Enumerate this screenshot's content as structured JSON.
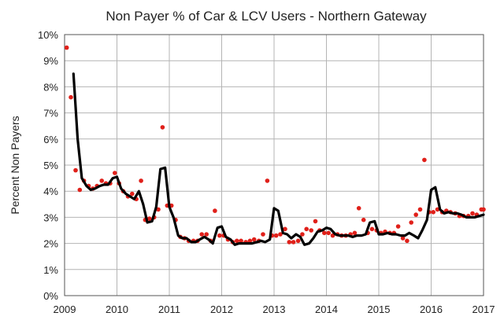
{
  "chart_data": {
    "type": "line",
    "title": "Non Payer % of Car & LCV Users - Northern Gateway",
    "ylabel": "Percent Non Payers",
    "xlabel": "",
    "xlim": [
      2009,
      2017
    ],
    "ylim": [
      0,
      10
    ],
    "grid": true,
    "colors": {
      "line": "#000000",
      "points": "#e0201a",
      "plot_border": "#555555",
      "grid": "#b4b4b4"
    },
    "x_tick_labels": [
      "2009",
      "2010",
      "2011",
      "2012",
      "2013",
      "2014",
      "2015",
      "2016",
      "2017"
    ],
    "y_tick_labels": [
      "0%",
      "1%",
      "2%",
      "3%",
      "4%",
      "5%",
      "6%",
      "7%",
      "8%",
      "9%",
      "10%"
    ],
    "series": [
      {
        "type": "line",
        "x": [
          2009.17,
          2009.25,
          2009.33,
          2009.42,
          2009.5,
          2009.58,
          2009.67,
          2009.75,
          2009.83,
          2009.92,
          2010.0,
          2010.08,
          2010.17,
          2010.25,
          2010.33,
          2010.42,
          2010.5,
          2010.58,
          2010.67,
          2010.75,
          2010.83,
          2010.92,
          2011.0,
          2011.08,
          2011.17,
          2011.25,
          2011.33,
          2011.42,
          2011.5,
          2011.58,
          2011.67,
          2011.75,
          2011.83,
          2011.92,
          2012.0,
          2012.08,
          2012.17,
          2012.25,
          2012.33,
          2012.42,
          2012.5,
          2012.58,
          2012.67,
          2012.75,
          2012.83,
          2012.92,
          2013.0,
          2013.08,
          2013.17,
          2013.25,
          2013.33,
          2013.42,
          2013.5,
          2013.58,
          2013.67,
          2013.75,
          2013.83,
          2013.92,
          2014.0,
          2014.08,
          2014.17,
          2014.25,
          2014.33,
          2014.42,
          2014.5,
          2014.58,
          2014.67,
          2014.75,
          2014.83,
          2014.92,
          2015.0,
          2015.08,
          2015.17,
          2015.25,
          2015.33,
          2015.42,
          2015.5,
          2015.58,
          2015.67,
          2015.75,
          2015.83,
          2015.92,
          2016.0,
          2016.08,
          2016.17,
          2016.25,
          2016.33,
          2016.42,
          2016.5,
          2016.58,
          2016.67,
          2016.75,
          2016.83,
          2016.92,
          2017.0
        ],
        "y": [
          8.5,
          6.0,
          4.5,
          4.2,
          4.05,
          4.1,
          4.2,
          4.25,
          4.25,
          4.5,
          4.55,
          4.1,
          3.9,
          3.8,
          3.7,
          4.0,
          3.5,
          2.8,
          2.85,
          3.4,
          4.85,
          4.9,
          3.4,
          3.0,
          2.3,
          2.2,
          2.2,
          2.05,
          2.05,
          2.15,
          2.25,
          2.15,
          2.0,
          2.6,
          2.65,
          2.25,
          2.15,
          1.95,
          2.0,
          2.0,
          2.0,
          2.0,
          2.05,
          2.1,
          2.05,
          2.15,
          3.35,
          3.25,
          2.4,
          2.35,
          2.2,
          2.35,
          2.25,
          1.95,
          2.0,
          2.2,
          2.45,
          2.5,
          2.6,
          2.55,
          2.35,
          2.3,
          2.3,
          2.3,
          2.25,
          2.3,
          2.3,
          2.35,
          2.8,
          2.85,
          2.35,
          2.35,
          2.4,
          2.35,
          2.35,
          2.3,
          2.3,
          2.4,
          2.3,
          2.2,
          2.5,
          2.9,
          4.05,
          4.15,
          3.3,
          3.15,
          3.2,
          3.15,
          3.15,
          3.1,
          3.0,
          3.0,
          3.0,
          3.05,
          3.1
        ]
      },
      {
        "type": "scatter",
        "x": [
          2009.04,
          2009.12,
          2009.21,
          2009.29,
          2009.37,
          2009.46,
          2009.54,
          2009.62,
          2009.71,
          2009.79,
          2009.87,
          2009.96,
          2010.04,
          2010.12,
          2010.21,
          2010.29,
          2010.37,
          2010.46,
          2010.54,
          2010.62,
          2010.71,
          2010.79,
          2010.87,
          2010.96,
          2011.04,
          2011.12,
          2011.21,
          2011.29,
          2011.37,
          2011.46,
          2011.54,
          2011.62,
          2011.71,
          2011.79,
          2011.87,
          2011.96,
          2012.04,
          2012.12,
          2012.21,
          2012.29,
          2012.37,
          2012.46,
          2012.54,
          2012.62,
          2012.71,
          2012.79,
          2012.87,
          2012.96,
          2013.04,
          2013.12,
          2013.21,
          2013.29,
          2013.37,
          2013.46,
          2013.54,
          2013.62,
          2013.71,
          2013.79,
          2013.87,
          2013.96,
          2014.04,
          2014.12,
          2014.21,
          2014.29,
          2014.37,
          2014.46,
          2014.54,
          2014.62,
          2014.71,
          2014.79,
          2014.87,
          2014.96,
          2015.04,
          2015.12,
          2015.21,
          2015.29,
          2015.37,
          2015.46,
          2015.54,
          2015.62,
          2015.71,
          2015.79,
          2015.87,
          2015.96,
          2016.04,
          2016.12,
          2016.21,
          2016.29,
          2016.37,
          2016.46,
          2016.54,
          2016.62,
          2016.71,
          2016.79,
          2016.87,
          2016.96,
          2017.0
        ],
        "y": [
          9.5,
          7.6,
          4.8,
          4.05,
          4.4,
          4.2,
          4.1,
          4.2,
          4.4,
          4.3,
          4.3,
          4.7,
          4.3,
          4.0,
          3.8,
          3.9,
          3.7,
          4.4,
          2.9,
          2.95,
          3.0,
          3.3,
          6.45,
          3.45,
          3.45,
          2.9,
          2.25,
          2.2,
          2.1,
          2.1,
          2.1,
          2.35,
          2.35,
          2.1,
          3.25,
          2.3,
          2.3,
          2.15,
          2.05,
          2.1,
          2.1,
          2.05,
          2.1,
          2.15,
          2.1,
          2.35,
          4.4,
          2.3,
          2.3,
          2.35,
          2.55,
          2.05,
          2.05,
          2.1,
          2.35,
          2.55,
          2.5,
          2.85,
          2.5,
          2.4,
          2.4,
          2.3,
          2.35,
          2.3,
          2.3,
          2.35,
          2.4,
          3.35,
          2.9,
          2.4,
          2.55,
          2.5,
          2.4,
          2.45,
          2.4,
          2.4,
          2.65,
          2.2,
          2.1,
          2.8,
          3.1,
          3.3,
          5.2,
          3.2,
          3.2,
          3.3,
          3.2,
          3.25,
          3.2,
          3.15,
          3.05,
          3.05,
          3.05,
          3.15,
          3.1,
          3.3,
          3.3
        ]
      }
    ]
  }
}
